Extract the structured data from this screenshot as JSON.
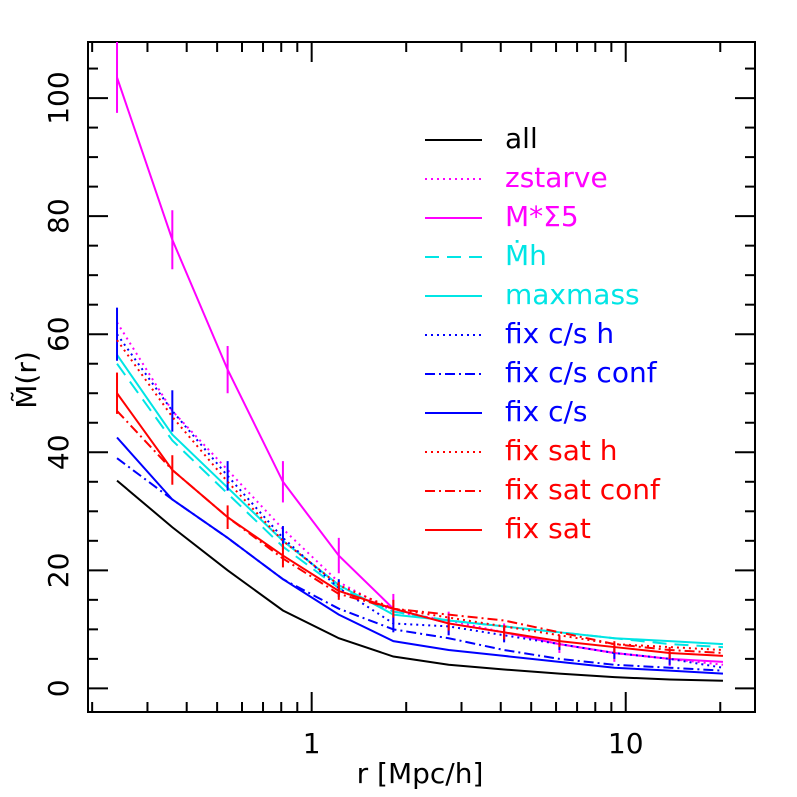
{
  "chart_data": {
    "type": "line",
    "xlabel": "r [Mpc/h]",
    "ylabel": "M̃(r)",
    "log_x": true,
    "xlim": [
      0.194,
      25.8
    ],
    "ylim": [
      -4,
      109.5
    ],
    "xticks": [
      1,
      10
    ],
    "yticks": [
      0,
      20,
      40,
      60,
      80,
      100
    ],
    "xminor": [
      0.2,
      0.3,
      0.4,
      0.5,
      0.6,
      0.7,
      0.8,
      0.9,
      2,
      3,
      4,
      5,
      6,
      7,
      8,
      9,
      20
    ],
    "yminor": [
      5,
      10,
      15,
      25,
      30,
      35,
      45,
      50,
      55,
      65,
      70,
      75,
      85,
      90,
      95,
      105
    ],
    "x": [
      0.24,
      0.36,
      0.54,
      0.81,
      1.22,
      1.82,
      2.73,
      4.1,
      6.15,
      9.2,
      13.8,
      20.4
    ],
    "series": [
      {
        "name": "all",
        "color": "#000000",
        "dash": "solid",
        "values": [
          35.2,
          27.3,
          20,
          13.2,
          8.5,
          5.4,
          4,
          3.2,
          2.5,
          1.9,
          1.5,
          1.3
        ]
      },
      {
        "name": "zstarve",
        "color": "#ff00ff",
        "dash": "dotted",
        "values": [
          62,
          47,
          37,
          27,
          18,
          13,
          11.5,
          9.5,
          7.5,
          6,
          5,
          4
        ]
      },
      {
        "name": "M*Σ5",
        "color": "#ff00ff",
        "dash": "solid",
        "values": [
          103.5,
          76,
          54,
          35,
          22.5,
          13.5,
          11,
          9.5,
          7.5,
          6,
          5,
          4.5
        ],
        "errors": [
          6,
          5,
          4,
          3.5,
          3,
          2.5,
          2,
          1.5,
          1.5,
          1.5,
          1.2,
          null
        ]
      },
      {
        "name": "Ṁh",
        "color": "#00e5e5",
        "dash": "dashed",
        "values": [
          55,
          42,
          33,
          24,
          17,
          13,
          11.5,
          10.5,
          9.5,
          8.5,
          7.5,
          7
        ]
      },
      {
        "name": "maxmass",
        "color": "#00e5e5",
        "dash": "solid",
        "values": [
          56.5,
          43,
          34,
          25,
          17.5,
          12.5,
          11.5,
          10.5,
          9.5,
          8.5,
          8,
          7.5
        ]
      },
      {
        "name": "fix c/s h",
        "color": "#0000ff",
        "dash": "dotted",
        "values": [
          60,
          47,
          36,
          25.5,
          17,
          11,
          10.5,
          9,
          7.5,
          6,
          5,
          3.5
        ],
        "errors": [
          4.5,
          3.5,
          2.5,
          2,
          1.5,
          1.5,
          1.5,
          1.2,
          1,
          1,
          1,
          null
        ]
      },
      {
        "name": "fix c/s conf",
        "color": "#0000ff",
        "dash": "dashdot",
        "values": [
          39,
          32,
          25.5,
          18.5,
          13.5,
          10,
          8.5,
          6.5,
          5,
          4,
          3.5,
          3
        ]
      },
      {
        "name": "fix c/s",
        "color": "#0000ff",
        "dash": "solid",
        "values": [
          42.5,
          32,
          25.5,
          18.5,
          12.5,
          8,
          6.5,
          5.5,
          4.5,
          3.5,
          3,
          2.5
        ]
      },
      {
        "name": "fix sat h",
        "color": "#ff0000",
        "dash": "dotted",
        "values": [
          59,
          46,
          35,
          25,
          17.5,
          13.5,
          12,
          10.5,
          9,
          7.5,
          7,
          6.5
        ]
      },
      {
        "name": "fix sat conf",
        "color": "#ff0000",
        "dash": "dashdot",
        "values": [
          47,
          37,
          29,
          22,
          16,
          13.5,
          12.5,
          11.5,
          9.5,
          7.5,
          6.5,
          6
        ]
      },
      {
        "name": "fix sat",
        "color": "#ff0000",
        "dash": "solid",
        "values": [
          50,
          37,
          29,
          22.5,
          16.5,
          13.5,
          11,
          9.5,
          8,
          7,
          6,
          5.5
        ],
        "errors": [
          3.5,
          2.5,
          2,
          2,
          1.5,
          1.5,
          1.2,
          1.2,
          1,
          1,
          1,
          null
        ]
      }
    ]
  }
}
